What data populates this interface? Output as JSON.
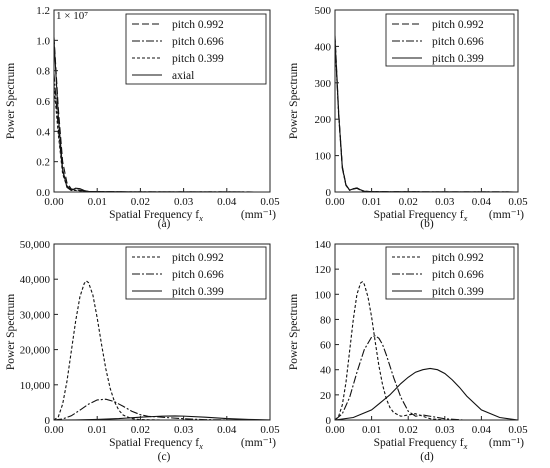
{
  "chart_data": [
    {
      "id": "a",
      "type": "line",
      "panel_label": "(a)",
      "scale_note": "1 × 10⁷",
      "xlabel": "Spatial Frequency f",
      "xlabel_sub": "x",
      "xunit": "(mm⁻¹)",
      "ylabel": "Power Spectrum",
      "xlim": [
        0,
        0.05
      ],
      "ylim": [
        0,
        1.2
      ],
      "xticks": [
        0,
        0.01,
        0.02,
        0.03,
        0.04,
        0.05
      ],
      "xtick_labels": [
        "0.00",
        "0.01",
        "0.02",
        "0.03",
        "0.04",
        "0.05"
      ],
      "yticks": [
        0,
        0.2,
        0.4,
        0.6,
        0.8,
        1.0,
        1.2
      ],
      "ytick_labels": [
        "0.0",
        "0.2",
        "0.4",
        "0.6",
        "0.8",
        "1.0",
        "1.2"
      ],
      "legend_position": "top-right",
      "series": [
        {
          "name": "pitch 0.992",
          "dash": "7,3",
          "x": [
            0,
            0.001,
            0.002,
            0.003,
            0.004,
            0.005,
            0.006,
            0.008,
            0.01,
            0.015,
            0.02,
            0.05
          ],
          "y": [
            1.02,
            0.55,
            0.2,
            0.06,
            0.02,
            0.015,
            0.012,
            0.004,
            0.002,
            0.001,
            0.0005,
            0
          ]
        },
        {
          "name": "pitch 0.696",
          "dash": "8,2,2,2",
          "x": [
            0,
            0.001,
            0.002,
            0.003,
            0.004,
            0.005,
            0.006,
            0.008,
            0.01,
            0.015,
            0.02,
            0.05
          ],
          "y": [
            0.78,
            0.42,
            0.14,
            0.04,
            0.015,
            0.012,
            0.01,
            0.003,
            0.002,
            0.001,
            0.0005,
            0
          ]
        },
        {
          "name": "pitch 0.399",
          "dash": "3,2",
          "x": [
            0,
            0.001,
            0.002,
            0.003,
            0.004,
            0.005,
            0.006,
            0.008,
            0.01,
            0.015,
            0.02,
            0.05
          ],
          "y": [
            0.7,
            0.38,
            0.12,
            0.035,
            0.012,
            0.01,
            0.008,
            0.002,
            0.001,
            0.0005,
            0.0003,
            0
          ]
        },
        {
          "name": "axial",
          "dash": "",
          "x": [
            0,
            0.001,
            0.002,
            0.003,
            0.004,
            0.005,
            0.006,
            0.007,
            0.008,
            0.01,
            0.015,
            0.02,
            0.05
          ],
          "y": [
            1.0,
            0.5,
            0.15,
            0.03,
            0.01,
            0.025,
            0.022,
            0.01,
            0.003,
            0.002,
            0.001,
            0.0005,
            0
          ]
        }
      ]
    },
    {
      "id": "b",
      "type": "line",
      "panel_label": "(b)",
      "xlabel": "Spatial Frequency f",
      "xlabel_sub": "x",
      "xunit": "(mm⁻¹)",
      "ylabel": "Power Spectrum",
      "xlim": [
        0,
        0.05
      ],
      "ylim": [
        0,
        500
      ],
      "xticks": [
        0,
        0.01,
        0.02,
        0.03,
        0.04,
        0.05
      ],
      "xtick_labels": [
        "0.00",
        "0.01",
        "0.02",
        "0.03",
        "0.04",
        "0.05"
      ],
      "yticks": [
        0,
        100,
        200,
        300,
        400,
        500
      ],
      "ytick_labels": [
        "0",
        "100",
        "200",
        "300",
        "400",
        "500"
      ],
      "legend_position": "top-right",
      "series": [
        {
          "name": "pitch 0.992",
          "dash": "7,3",
          "x": [
            0,
            0.001,
            0.002,
            0.003,
            0.004,
            0.005,
            0.006,
            0.007,
            0.008,
            0.01,
            0.015,
            0.05
          ],
          "y": [
            430,
            220,
            70,
            20,
            5,
            9,
            11,
            6,
            2,
            1,
            0.5,
            0
          ]
        },
        {
          "name": "pitch 0.696",
          "dash": "8,2,2,2",
          "x": [
            0,
            0.001,
            0.002,
            0.003,
            0.004,
            0.005,
            0.006,
            0.007,
            0.008,
            0.01,
            0.015,
            0.05
          ],
          "y": [
            415,
            210,
            65,
            18,
            5,
            8,
            10,
            5,
            2,
            1,
            0.5,
            0
          ]
        },
        {
          "name": "pitch 0.399",
          "dash": "",
          "x": [
            0,
            0.001,
            0.002,
            0.003,
            0.004,
            0.005,
            0.006,
            0.007,
            0.008,
            0.01,
            0.015,
            0.05
          ],
          "y": [
            420,
            215,
            68,
            19,
            5,
            9,
            11,
            6,
            2,
            1,
            0.5,
            0
          ]
        }
      ]
    },
    {
      "id": "c",
      "type": "line",
      "panel_label": "(c)",
      "xlabel": "Spatial Frequency f",
      "xlabel_sub": "x",
      "xunit": "(mm⁻¹)",
      "ylabel": "Power Spectrum",
      "xlim": [
        0,
        0.05
      ],
      "ylim": [
        0,
        50000
      ],
      "xticks": [
        0,
        0.01,
        0.02,
        0.03,
        0.04,
        0.05
      ],
      "xtick_labels": [
        "0.00",
        "0.01",
        "0.02",
        "0.03",
        "0.04",
        "0.05"
      ],
      "yticks": [
        0,
        10000,
        20000,
        30000,
        40000,
        50000
      ],
      "ytick_labels": [
        "0",
        "10,000",
        "20,000",
        "30,000",
        "40,000",
        "50,000"
      ],
      "legend_position": "top-right",
      "series": [
        {
          "name": "pitch 0.992",
          "dash": "3,2",
          "x": [
            0,
            0.001,
            0.002,
            0.003,
            0.004,
            0.005,
            0.006,
            0.007,
            0.0075,
            0.008,
            0.009,
            0.01,
            0.011,
            0.012,
            0.013,
            0.014,
            0.015,
            0.016,
            0.018,
            0.02,
            0.025,
            0.03,
            0.05
          ],
          "y": [
            0,
            900,
            4500,
            11000,
            19500,
            28000,
            35000,
            38800,
            39500,
            39000,
            35500,
            29000,
            21500,
            14500,
            9000,
            5200,
            2800,
            1400,
            400,
            120,
            0,
            0,
            0
          ]
        },
        {
          "name": "pitch 0.696",
          "dash": "8,2,2,2",
          "x": [
            0,
            0.002,
            0.004,
            0.006,
            0.008,
            0.01,
            0.012,
            0.014,
            0.016,
            0.018,
            0.02,
            0.022,
            0.024,
            0.026,
            0.03,
            0.035,
            0.04,
            0.05
          ],
          "y": [
            0,
            300,
            1200,
            2800,
            4500,
            5700,
            5900,
            5200,
            3900,
            2500,
            1500,
            1000,
            900,
            700,
            350,
            100,
            20,
            0
          ]
        },
        {
          "name": "pitch 0.399",
          "dash": "",
          "x": [
            0,
            0.005,
            0.01,
            0.015,
            0.02,
            0.025,
            0.028,
            0.03,
            0.035,
            0.04,
            0.045,
            0.05
          ],
          "y": [
            0,
            30,
            150,
            400,
            800,
            1100,
            1150,
            1100,
            800,
            400,
            150,
            30
          ]
        }
      ]
    },
    {
      "id": "d",
      "type": "line",
      "panel_label": "(d)",
      "xlabel": "Spatial Frequency f",
      "xlabel_sub": "x",
      "xunit": "(mm⁻¹)",
      "ylabel": "Power Spectrum",
      "xlim": [
        0,
        0.05
      ],
      "ylim": [
        0,
        140
      ],
      "xticks": [
        0,
        0.01,
        0.02,
        0.03,
        0.04,
        0.05
      ],
      "xtick_labels": [
        "0.00",
        "0.01",
        "0.02",
        "0.03",
        "0.04",
        "0.05"
      ],
      "yticks": [
        0,
        20,
        40,
        60,
        80,
        100,
        120,
        140
      ],
      "ytick_labels": [
        "0",
        "20",
        "40",
        "60",
        "80",
        "100",
        "120",
        "140"
      ],
      "legend_position": "top-right",
      "series": [
        {
          "name": "pitch 0.992",
          "dash": "3,2",
          "x": [
            0,
            0.001,
            0.002,
            0.003,
            0.004,
            0.005,
            0.006,
            0.007,
            0.0075,
            0.008,
            0.009,
            0.01,
            0.011,
            0.012,
            0.013,
            0.014,
            0.015,
            0.016,
            0.018,
            0.02,
            0.022,
            0.024,
            0.026,
            0.03,
            0.05
          ],
          "y": [
            0,
            3,
            12,
            30,
            55,
            80,
            100,
            109,
            110,
            108,
            98,
            82,
            62,
            43,
            28,
            17,
            10,
            6,
            3,
            4,
            5,
            3,
            1,
            0,
            0
          ]
        },
        {
          "name": "pitch 0.696",
          "dash": "8,2,2,2",
          "x": [
            0,
            0.002,
            0.004,
            0.006,
            0.008,
            0.01,
            0.011,
            0.012,
            0.013,
            0.014,
            0.016,
            0.018,
            0.02,
            0.022,
            0.024,
            0.026,
            0.03,
            0.035,
            0.05
          ],
          "y": [
            0,
            5,
            18,
            38,
            56,
            66,
            67,
            65,
            60,
            52,
            34,
            18,
            7,
            3,
            4,
            3,
            1,
            0,
            0
          ]
        },
        {
          "name": "pitch 0.399",
          "dash": "",
          "x": [
            0,
            0.005,
            0.01,
            0.015,
            0.018,
            0.02,
            0.022,
            0.024,
            0.026,
            0.028,
            0.03,
            0.032,
            0.034,
            0.036,
            0.04,
            0.045,
            0.05
          ],
          "y": [
            0,
            2,
            8,
            20,
            29,
            34,
            38,
            40,
            41,
            40,
            37,
            32,
            26,
            19,
            8,
            2,
            0
          ]
        }
      ]
    }
  ]
}
